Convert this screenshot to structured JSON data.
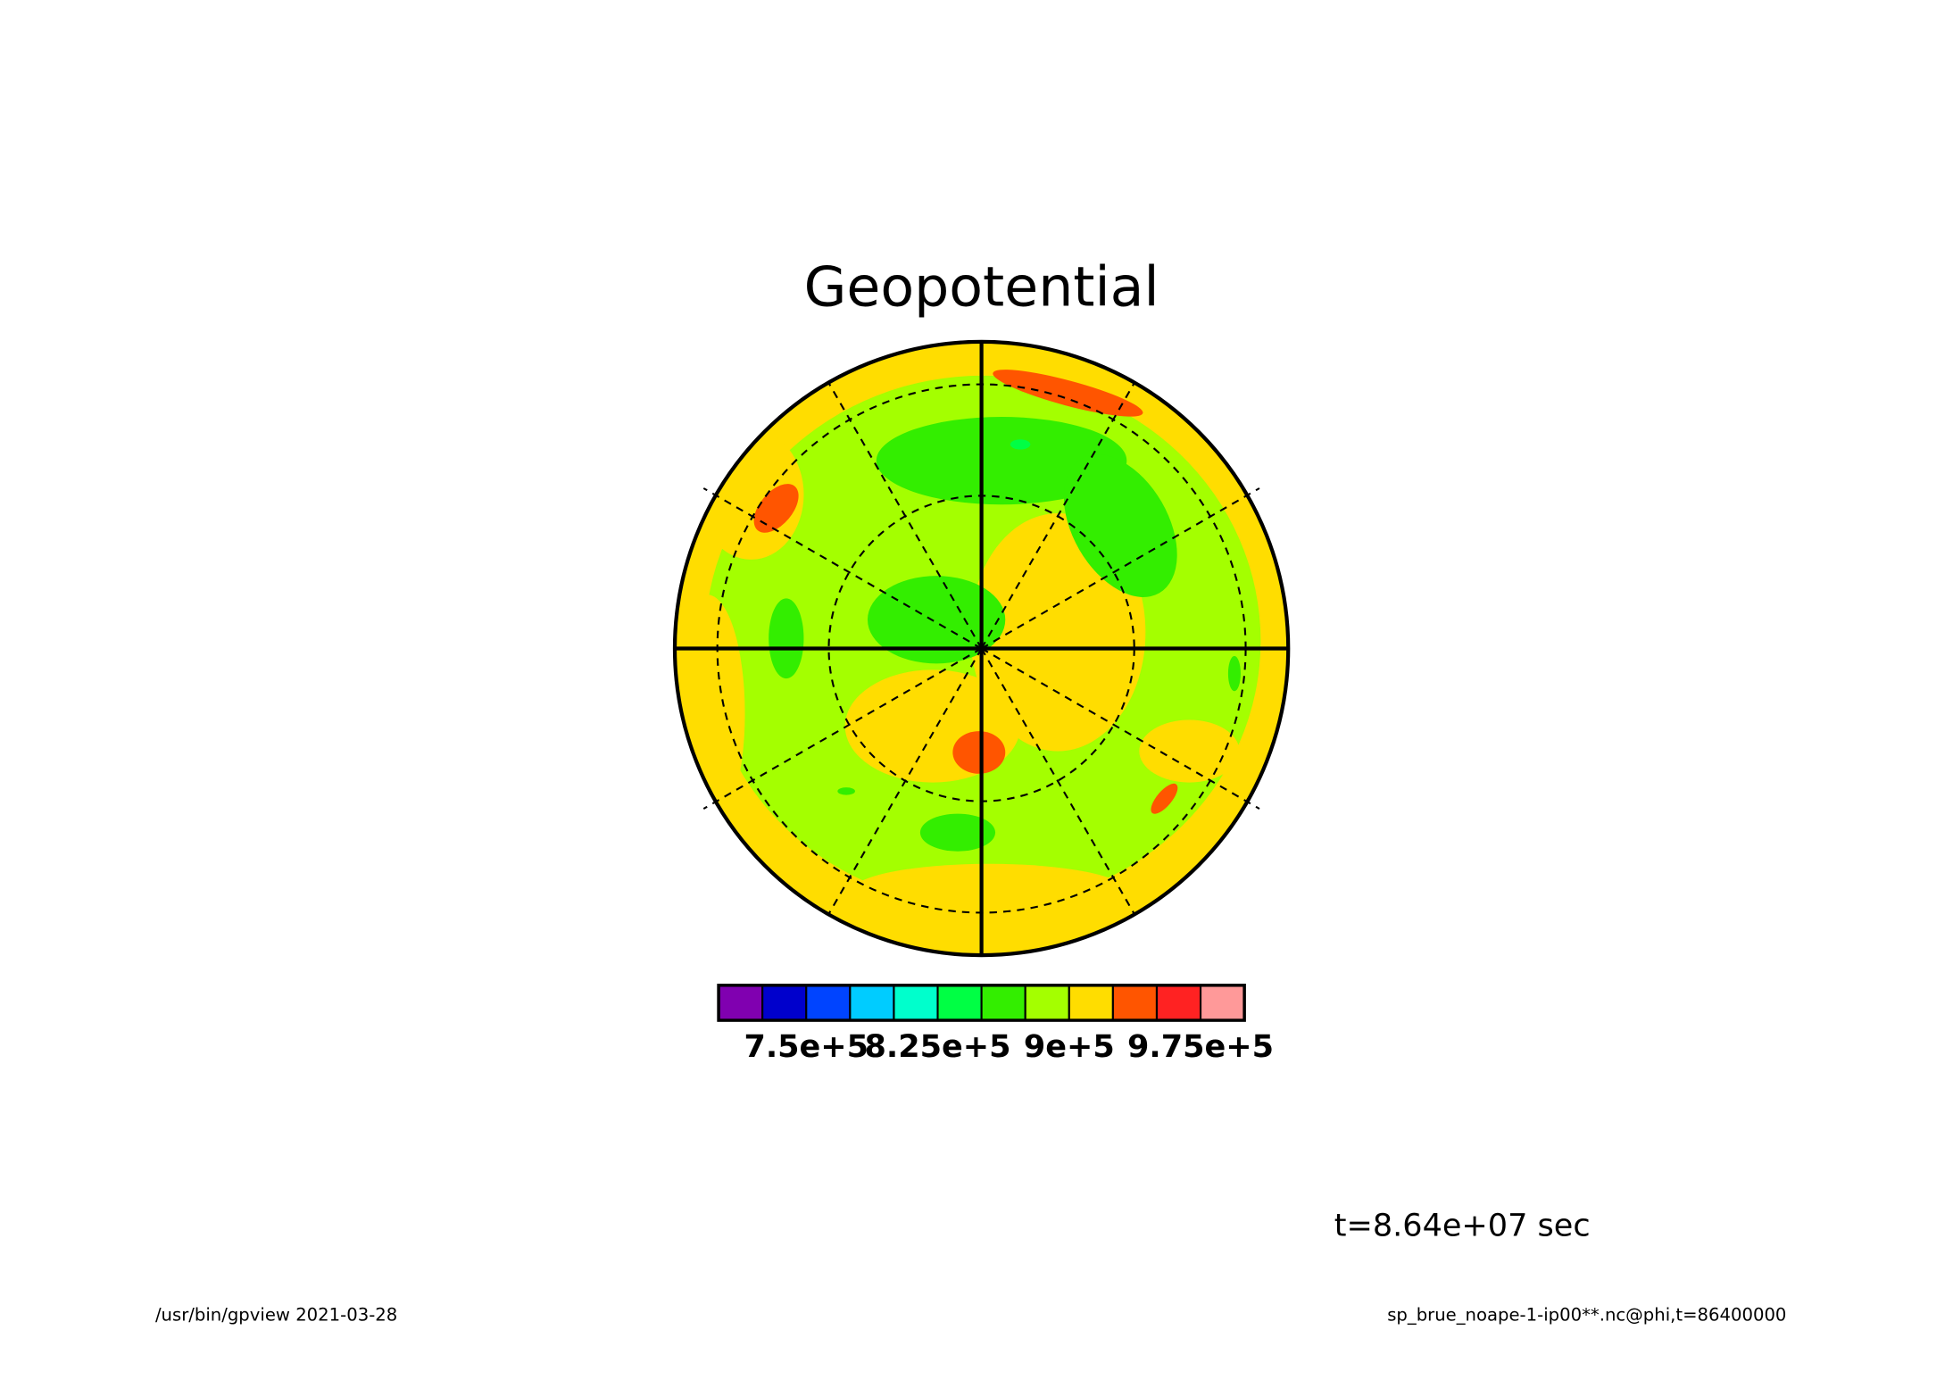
{
  "title": "Geopotential",
  "colorbar": {
    "colors": [
      "#8000b0",
      "#0000cc",
      "#0044ff",
      "#00ccff",
      "#00ffcc",
      "#00ff44",
      "#33ee00",
      "#a4ff00",
      "#ffdd00",
      "#ff5500",
      "#ff2222",
      "#ff9999"
    ],
    "range": [
      700000,
      1000000
    ],
    "ticks": [
      {
        "value": 750000,
        "label": "7.5e+5"
      },
      {
        "value": 825000,
        "label": "8.25e+5"
      },
      {
        "value": 900000,
        "label": "9e+5"
      },
      {
        "value": 975000,
        "label": "9.75e+5"
      }
    ]
  },
  "time_label": "t=8.64e+07 sec",
  "footer": {
    "left": "/usr/bin/gpview  2021-03-28",
    "right": "sp_brue_noape-1-ip00**.nc@phi,t=86400000"
  }
}
